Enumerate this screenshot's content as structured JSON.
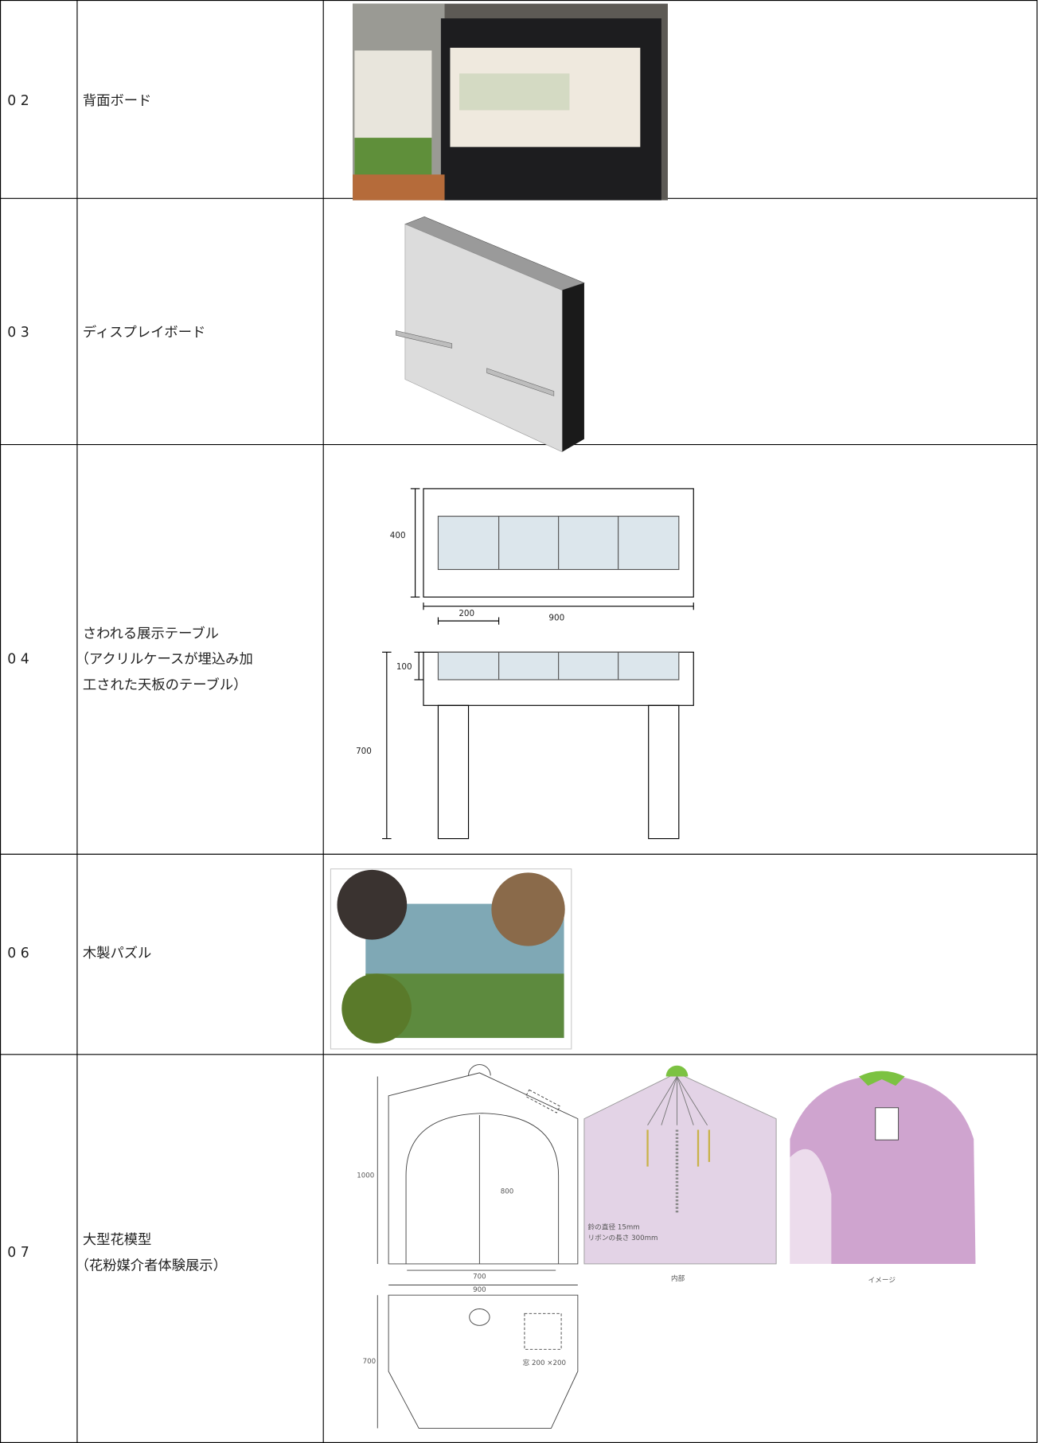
{
  "rows": [
    {
      "no": "0 2",
      "name": [
        "背面ボード"
      ]
    },
    {
      "no": "0 3",
      "name": [
        "ディスプレイボード"
      ]
    },
    {
      "no": "0 4",
      "name": [
        "さわれる展示テーブル",
        "（アクリルケースが埋込み加",
        "工された天板のテーブル）"
      ],
      "dims": [
        "400",
        "900",
        "200",
        "100",
        "700"
      ]
    },
    {
      "no": "0 6",
      "name": [
        "木製パズル"
      ]
    },
    {
      "no": "0 7",
      "name": [
        "大型花模型",
        "（花粉媒介者体験展示）"
      ],
      "dims": [
        "1000",
        "800",
        "700",
        "900",
        "700",
        "窓 200 ×200",
        "鈴の直径 15mm",
        "リボンの長さ 300mm",
        "内部",
        "イメージ"
      ]
    }
  ]
}
